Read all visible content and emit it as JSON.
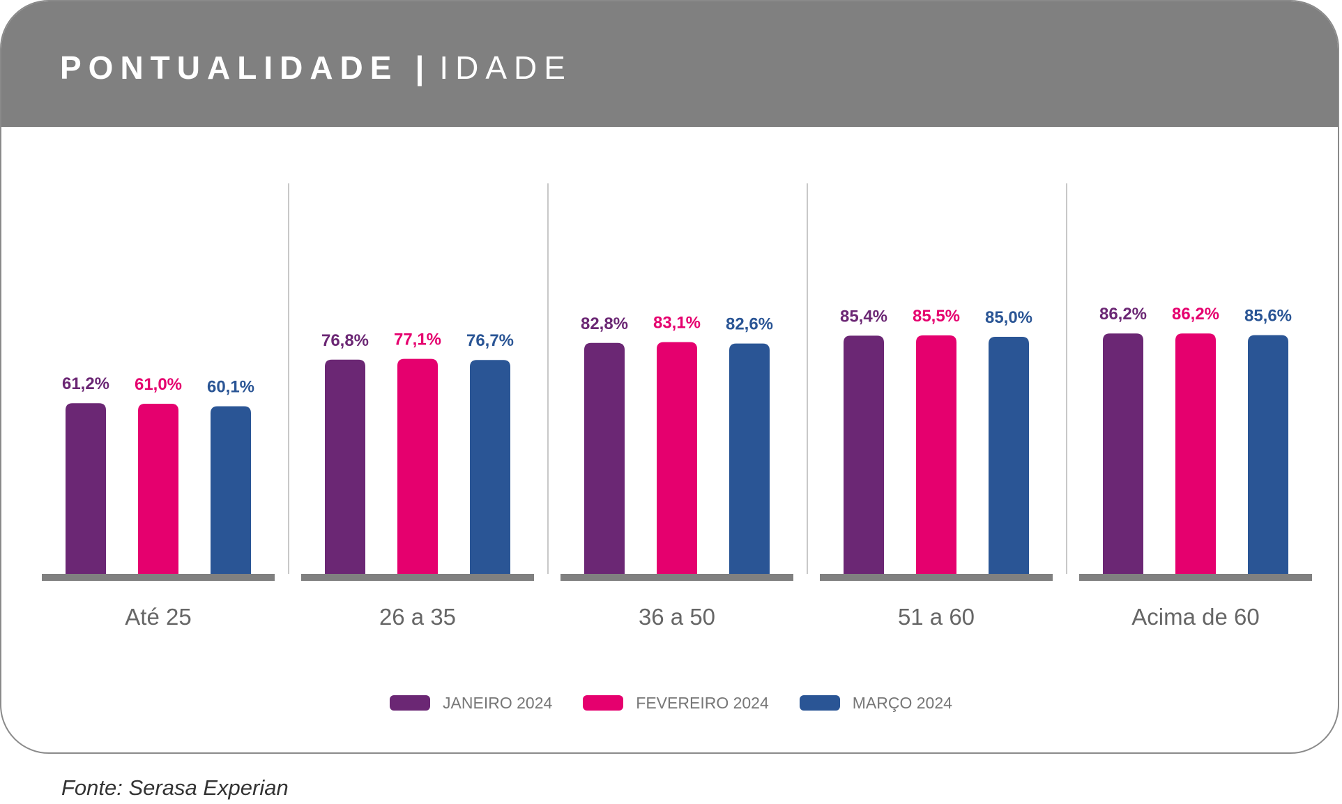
{
  "header": {
    "title": "PONTUALIDADE",
    "separator": "|",
    "subtitle": "IDADE"
  },
  "chart_data": {
    "type": "bar",
    "categories": [
      "Até 25",
      "26 a 35",
      "36 a 50",
      "51 a 60",
      "Acima de 60"
    ],
    "series": [
      {
        "name": "JANEIRO 2024",
        "color": "#6B2774",
        "values": [
          61.2,
          76.8,
          82.8,
          85.4,
          86.2
        ],
        "labels": [
          "61,2%",
          "76,8%",
          "82,8%",
          "85,4%",
          "86,2%"
        ]
      },
      {
        "name": "FEVEREIRO 2024",
        "color": "#E5006E",
        "values": [
          61.0,
          77.1,
          83.1,
          85.5,
          86.2
        ],
        "labels": [
          "61,0%",
          "77,1%",
          "83,1%",
          "85,5%",
          "86,2%"
        ]
      },
      {
        "name": "MARÇO 2024",
        "color": "#2A5595",
        "values": [
          60.1,
          76.7,
          82.6,
          85.0,
          85.6
        ],
        "labels": [
          "60,1%",
          "76,7%",
          "82,6%",
          "85,0%",
          "85,6%"
        ]
      }
    ],
    "legend_position": "bottom-center",
    "grid": false,
    "axis_color": "#808080"
  },
  "source": "Fonte: Serasa Experian"
}
